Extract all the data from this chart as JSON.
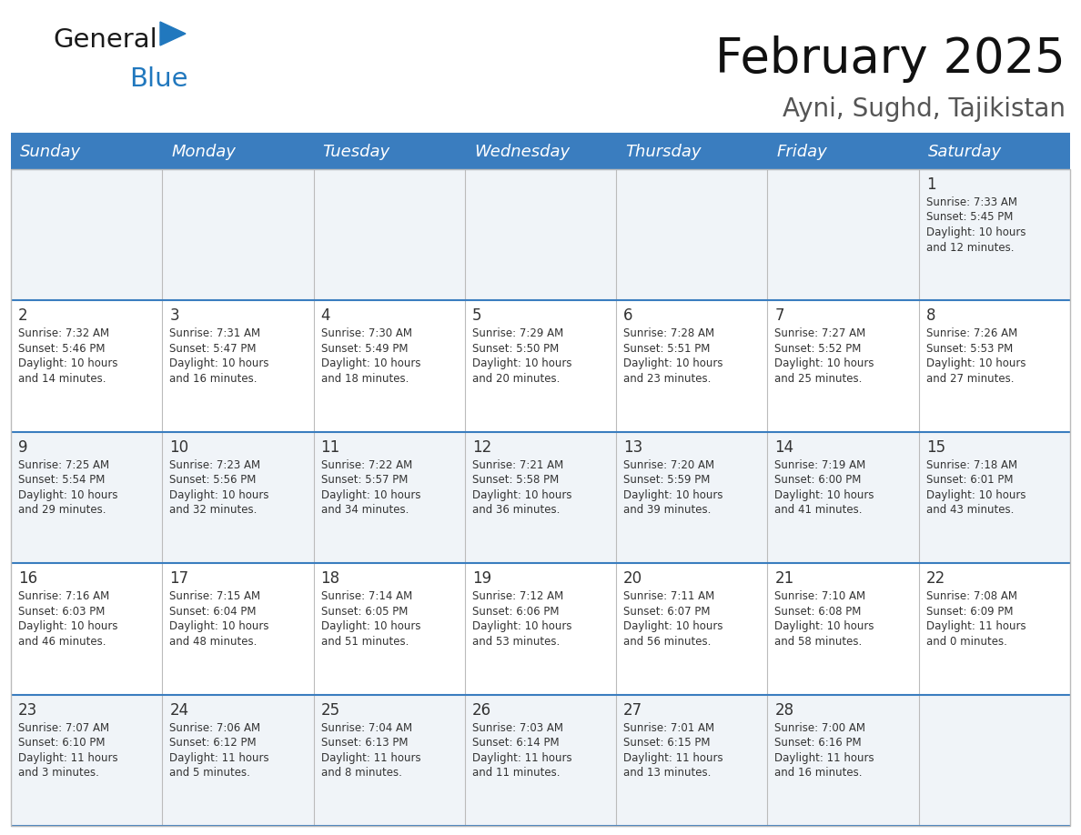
{
  "title": "February 2025",
  "subtitle": "Ayni, Sughd, Tajikistan",
  "days_of_week": [
    "Sunday",
    "Monday",
    "Tuesday",
    "Wednesday",
    "Thursday",
    "Friday",
    "Saturday"
  ],
  "header_bg": "#3a7dbf",
  "header_text": "#ffffff",
  "cell_bg_odd": "#f0f4f8",
  "cell_bg_even": "#ffffff",
  "separator_color": "#3a7dbf",
  "text_color": "#333333",
  "day_number_color": "#333333",
  "grid_line_color": "#bbbbbb",
  "weeks": [
    [
      null,
      null,
      null,
      null,
      null,
      null,
      {
        "day": 1,
        "sunrise": "7:33 AM",
        "sunset": "5:45 PM",
        "daylight_line1": "Daylight: 10 hours",
        "daylight_line2": "and 12 minutes."
      }
    ],
    [
      {
        "day": 2,
        "sunrise": "7:32 AM",
        "sunset": "5:46 PM",
        "daylight_line1": "Daylight: 10 hours",
        "daylight_line2": "and 14 minutes."
      },
      {
        "day": 3,
        "sunrise": "7:31 AM",
        "sunset": "5:47 PM",
        "daylight_line1": "Daylight: 10 hours",
        "daylight_line2": "and 16 minutes."
      },
      {
        "day": 4,
        "sunrise": "7:30 AM",
        "sunset": "5:49 PM",
        "daylight_line1": "Daylight: 10 hours",
        "daylight_line2": "and 18 minutes."
      },
      {
        "day": 5,
        "sunrise": "7:29 AM",
        "sunset": "5:50 PM",
        "daylight_line1": "Daylight: 10 hours",
        "daylight_line2": "and 20 minutes."
      },
      {
        "day": 6,
        "sunrise": "7:28 AM",
        "sunset": "5:51 PM",
        "daylight_line1": "Daylight: 10 hours",
        "daylight_line2": "and 23 minutes."
      },
      {
        "day": 7,
        "sunrise": "7:27 AM",
        "sunset": "5:52 PM",
        "daylight_line1": "Daylight: 10 hours",
        "daylight_line2": "and 25 minutes."
      },
      {
        "day": 8,
        "sunrise": "7:26 AM",
        "sunset": "5:53 PM",
        "daylight_line1": "Daylight: 10 hours",
        "daylight_line2": "and 27 minutes."
      }
    ],
    [
      {
        "day": 9,
        "sunrise": "7:25 AM",
        "sunset": "5:54 PM",
        "daylight_line1": "Daylight: 10 hours",
        "daylight_line2": "and 29 minutes."
      },
      {
        "day": 10,
        "sunrise": "7:23 AM",
        "sunset": "5:56 PM",
        "daylight_line1": "Daylight: 10 hours",
        "daylight_line2": "and 32 minutes."
      },
      {
        "day": 11,
        "sunrise": "7:22 AM",
        "sunset": "5:57 PM",
        "daylight_line1": "Daylight: 10 hours",
        "daylight_line2": "and 34 minutes."
      },
      {
        "day": 12,
        "sunrise": "7:21 AM",
        "sunset": "5:58 PM",
        "daylight_line1": "Daylight: 10 hours",
        "daylight_line2": "and 36 minutes."
      },
      {
        "day": 13,
        "sunrise": "7:20 AM",
        "sunset": "5:59 PM",
        "daylight_line1": "Daylight: 10 hours",
        "daylight_line2": "and 39 minutes."
      },
      {
        "day": 14,
        "sunrise": "7:19 AM",
        "sunset": "6:00 PM",
        "daylight_line1": "Daylight: 10 hours",
        "daylight_line2": "and 41 minutes."
      },
      {
        "day": 15,
        "sunrise": "7:18 AM",
        "sunset": "6:01 PM",
        "daylight_line1": "Daylight: 10 hours",
        "daylight_line2": "and 43 minutes."
      }
    ],
    [
      {
        "day": 16,
        "sunrise": "7:16 AM",
        "sunset": "6:03 PM",
        "daylight_line1": "Daylight: 10 hours",
        "daylight_line2": "and 46 minutes."
      },
      {
        "day": 17,
        "sunrise": "7:15 AM",
        "sunset": "6:04 PM",
        "daylight_line1": "Daylight: 10 hours",
        "daylight_line2": "and 48 minutes."
      },
      {
        "day": 18,
        "sunrise": "7:14 AM",
        "sunset": "6:05 PM",
        "daylight_line1": "Daylight: 10 hours",
        "daylight_line2": "and 51 minutes."
      },
      {
        "day": 19,
        "sunrise": "7:12 AM",
        "sunset": "6:06 PM",
        "daylight_line1": "Daylight: 10 hours",
        "daylight_line2": "and 53 minutes."
      },
      {
        "day": 20,
        "sunrise": "7:11 AM",
        "sunset": "6:07 PM",
        "daylight_line1": "Daylight: 10 hours",
        "daylight_line2": "and 56 minutes."
      },
      {
        "day": 21,
        "sunrise": "7:10 AM",
        "sunset": "6:08 PM",
        "daylight_line1": "Daylight: 10 hours",
        "daylight_line2": "and 58 minutes."
      },
      {
        "day": 22,
        "sunrise": "7:08 AM",
        "sunset": "6:09 PM",
        "daylight_line1": "Daylight: 11 hours",
        "daylight_line2": "and 0 minutes."
      }
    ],
    [
      {
        "day": 23,
        "sunrise": "7:07 AM",
        "sunset": "6:10 PM",
        "daylight_line1": "Daylight: 11 hours",
        "daylight_line2": "and 3 minutes."
      },
      {
        "day": 24,
        "sunrise": "7:06 AM",
        "sunset": "6:12 PM",
        "daylight_line1": "Daylight: 11 hours",
        "daylight_line2": "and 5 minutes."
      },
      {
        "day": 25,
        "sunrise": "7:04 AM",
        "sunset": "6:13 PM",
        "daylight_line1": "Daylight: 11 hours",
        "daylight_line2": "and 8 minutes."
      },
      {
        "day": 26,
        "sunrise": "7:03 AM",
        "sunset": "6:14 PM",
        "daylight_line1": "Daylight: 11 hours",
        "daylight_line2": "and 11 minutes."
      },
      {
        "day": 27,
        "sunrise": "7:01 AM",
        "sunset": "6:15 PM",
        "daylight_line1": "Daylight: 11 hours",
        "daylight_line2": "and 13 minutes."
      },
      {
        "day": 28,
        "sunrise": "7:00 AM",
        "sunset": "6:16 PM",
        "daylight_line1": "Daylight: 11 hours",
        "daylight_line2": "and 16 minutes."
      },
      null
    ]
  ],
  "logo_color_general": "#1a1a1a",
  "logo_color_blue": "#2178be",
  "logo_triangle_color": "#2178be",
  "title_color": "#111111",
  "subtitle_color": "#555555"
}
